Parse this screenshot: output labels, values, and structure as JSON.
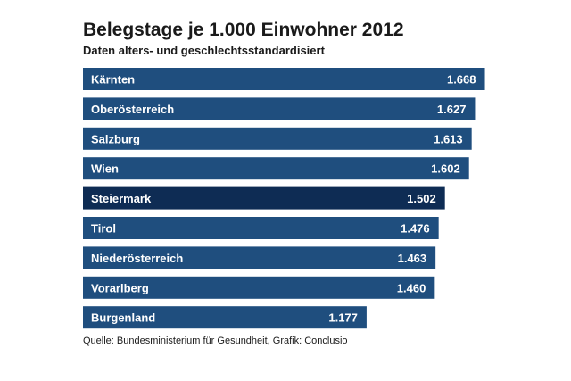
{
  "chart_data": {
    "type": "bar",
    "orientation": "horizontal",
    "title": "Belegstage je 1.000 Einwohner 2012",
    "subtitle": "Daten alters- und geschlechtsstandardisiert",
    "categories": [
      "Kärnten",
      "Oberösterreich",
      "Salzburg",
      "Wien",
      "Steiermark",
      "Tirol",
      "Niederösterreich",
      "Vorarlberg",
      "Burgenland"
    ],
    "values": [
      1668,
      1627,
      1613,
      1602,
      1502,
      1476,
      1463,
      1460,
      1177
    ],
    "value_labels": [
      "1.668",
      "1.627",
      "1.613",
      "1.602",
      "1.502",
      "1.476",
      "1.463",
      "1.460",
      "1.177"
    ],
    "highlight": "Steiermark",
    "colors": {
      "bar": "#1f4e7e",
      "highlight": "#0e2c54",
      "text": "#ffffff"
    },
    "grid": false,
    "legend": "none",
    "source": "Quelle: Bundesministerium für Gesundheit, Grafik: Conclusio"
  }
}
